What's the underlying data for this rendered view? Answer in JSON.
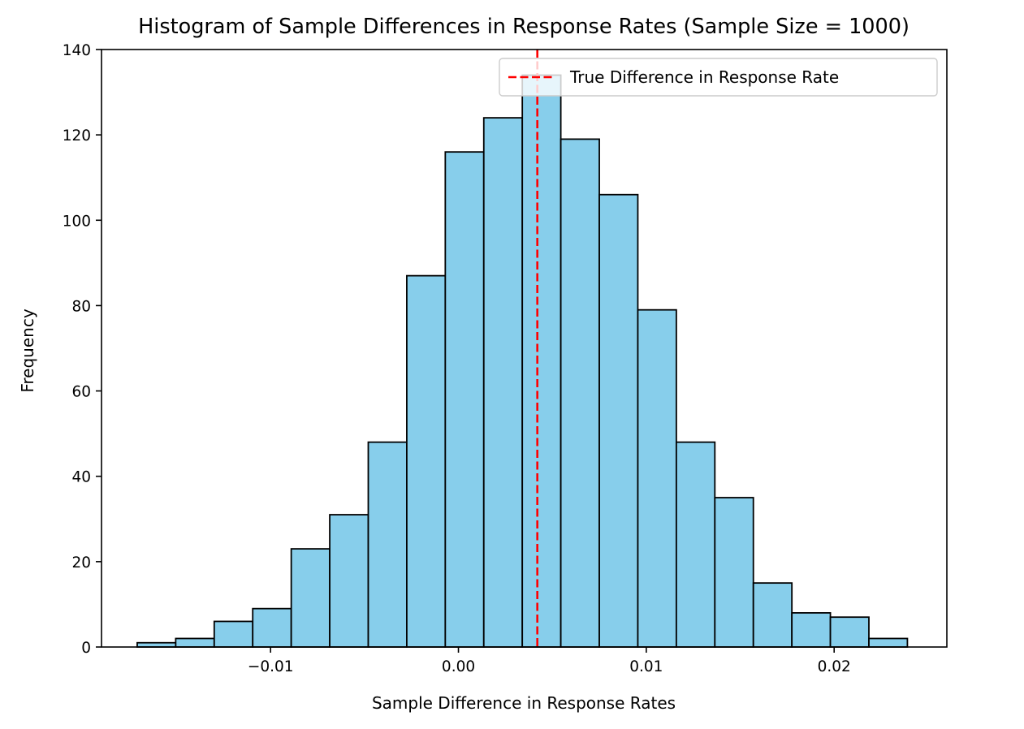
{
  "chart_data": {
    "type": "bar",
    "title": "Histogram of Sample Differences in Response Rates (Sample Size = 1000)",
    "xlabel": "Sample Difference in Response Rates",
    "ylabel": "Frequency",
    "xlim": [
      -0.019,
      0.026
    ],
    "ylim": [
      0,
      140
    ],
    "xticks": [
      -0.01,
      0.0,
      0.01,
      0.02
    ],
    "xtick_labels": [
      "−0.01",
      "0.00",
      "0.01",
      "0.02"
    ],
    "yticks": [
      0,
      20,
      40,
      60,
      80,
      100,
      120,
      140
    ],
    "ytick_labels": [
      "0",
      "20",
      "40",
      "60",
      "80",
      "100",
      "120",
      "140"
    ],
    "bins": {
      "edges": [
        -0.0171,
        -0.01505,
        -0.013,
        -0.01095,
        -0.0089,
        -0.00685,
        -0.0048,
        -0.00275,
        -0.0007,
        0.00135,
        0.0034,
        0.00545,
        0.0075,
        0.00955,
        0.0116,
        0.01365,
        0.0157,
        0.01775,
        0.0198,
        0.02185,
        0.0239
      ],
      "counts": [
        1,
        2,
        6,
        9,
        23,
        31,
        48,
        87,
        116,
        124,
        134,
        119,
        106,
        79,
        48,
        35,
        15,
        8,
        7,
        2
      ]
    },
    "reference_line": {
      "x": 0.0042,
      "label": "True Difference in Response Rate",
      "color": "#ff0000",
      "style": "dashed"
    },
    "bar_color": "#87ceeb",
    "edge_color": "#000000",
    "legend_position": "top-right",
    "grid": false
  }
}
